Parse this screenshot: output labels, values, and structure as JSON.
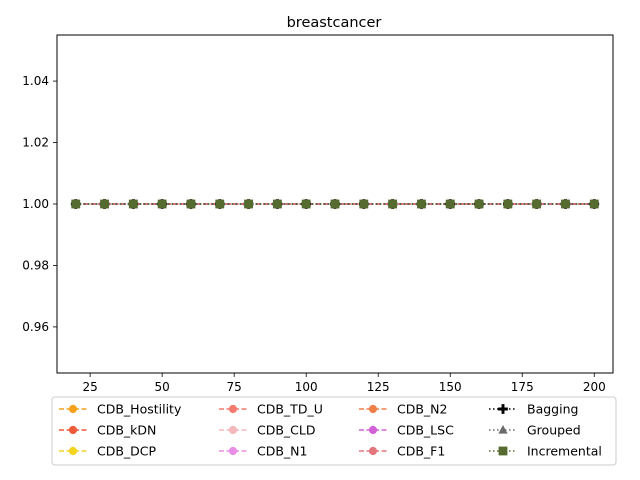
{
  "chart_data": {
    "type": "line",
    "title": "breastcancer",
    "xlabel": "",
    "ylabel": "",
    "xlim": [
      13.5,
      206.5
    ],
    "ylim": [
      0.945,
      1.055
    ],
    "xticks": [
      25,
      50,
      75,
      100,
      125,
      150,
      175,
      200
    ],
    "yticks": [
      0.96,
      0.98,
      1.0,
      1.02,
      1.04
    ],
    "xtick_labels": [
      "25",
      "50",
      "75",
      "100",
      "125",
      "150",
      "175",
      "200"
    ],
    "ytick_labels": [
      "0.96",
      "0.98",
      "1.00",
      "1.02",
      "1.04"
    ],
    "x": [
      20,
      30,
      40,
      50,
      60,
      70,
      80,
      90,
      100,
      110,
      120,
      130,
      140,
      150,
      160,
      170,
      180,
      190,
      200
    ],
    "grid": false,
    "legend_position": "bottom-center",
    "legend_columns": 4,
    "series": [
      {
        "name": "CDB_Hostility",
        "color": "#f5a11e",
        "dash": "dashed",
        "marker": "circle",
        "values": [
          1,
          1,
          1,
          1,
          1,
          1,
          1,
          1,
          1,
          1,
          1,
          1,
          1,
          1,
          1,
          1,
          1,
          1,
          1
        ]
      },
      {
        "name": "CDB_kDN",
        "color": "#ee5a3c",
        "dash": "dashed",
        "marker": "circle",
        "values": [
          1,
          1,
          1,
          1,
          1,
          1,
          1,
          1,
          1,
          1,
          1,
          1,
          1,
          1,
          1,
          1,
          1,
          1,
          1
        ]
      },
      {
        "name": "CDB_DCP",
        "color": "#f3d420",
        "dash": "dashed",
        "marker": "circle",
        "values": [
          1,
          1,
          1,
          1,
          1,
          1,
          1,
          1,
          1,
          1,
          1,
          1,
          1,
          1,
          1,
          1,
          1,
          1,
          1
        ]
      },
      {
        "name": "CDB_TD_U",
        "color": "#f27a6e",
        "dash": "dashed",
        "marker": "circle",
        "values": [
          1,
          1,
          1,
          1,
          1,
          1,
          1,
          1,
          1,
          1,
          1,
          1,
          1,
          1,
          1,
          1,
          1,
          1,
          1
        ]
      },
      {
        "name": "CDB_CLD",
        "color": "#f4b8bc",
        "dash": "dashed",
        "marker": "circle",
        "values": [
          1,
          1,
          1,
          1,
          1,
          1,
          1,
          1,
          1,
          1,
          1,
          1,
          1,
          1,
          1,
          1,
          1,
          1,
          1
        ]
      },
      {
        "name": "CDB_N1",
        "color": "#e88ee6",
        "dash": "dashed",
        "marker": "circle",
        "values": [
          1,
          1,
          1,
          1,
          1,
          1,
          1,
          1,
          1,
          1,
          1,
          1,
          1,
          1,
          1,
          1,
          1,
          1,
          1
        ]
      },
      {
        "name": "CDB_N2",
        "color": "#f0804a",
        "dash": "dashed",
        "marker": "circle",
        "values": [
          1,
          1,
          1,
          1,
          1,
          1,
          1,
          1,
          1,
          1,
          1,
          1,
          1,
          1,
          1,
          1,
          1,
          1,
          1
        ]
      },
      {
        "name": "CDB_LSC",
        "color": "#d460d8",
        "dash": "dashed",
        "marker": "circle",
        "values": [
          1,
          1,
          1,
          1,
          1,
          1,
          1,
          1,
          1,
          1,
          1,
          1,
          1,
          1,
          1,
          1,
          1,
          1,
          1
        ]
      },
      {
        "name": "CDB_F1",
        "color": "#e2767a",
        "dash": "dashed",
        "marker": "circle",
        "values": [
          1,
          1,
          1,
          1,
          1,
          1,
          1,
          1,
          1,
          1,
          1,
          1,
          1,
          1,
          1,
          1,
          1,
          1,
          1
        ]
      },
      {
        "name": "Bagging",
        "color": "#000000",
        "dash": "dotted",
        "marker": "plus",
        "values": [
          1,
          1,
          1,
          1,
          1,
          1,
          1,
          1,
          1,
          1,
          1,
          1,
          1,
          1,
          1,
          1,
          1,
          1,
          1
        ]
      },
      {
        "name": "Grouped",
        "color": "#6b6b6b",
        "dash": "dotted",
        "marker": "triangle",
        "values": [
          1,
          1,
          1,
          1,
          1,
          1,
          1,
          1,
          1,
          1,
          1,
          1,
          1,
          1,
          1,
          1,
          1,
          1,
          1
        ]
      },
      {
        "name": "Incremental",
        "color": "#556b2f",
        "dash": "dotted",
        "marker": "square",
        "values": [
          1,
          1,
          1,
          1,
          1,
          1,
          1,
          1,
          1,
          1,
          1,
          1,
          1,
          1,
          1,
          1,
          1,
          1,
          1
        ]
      }
    ]
  }
}
